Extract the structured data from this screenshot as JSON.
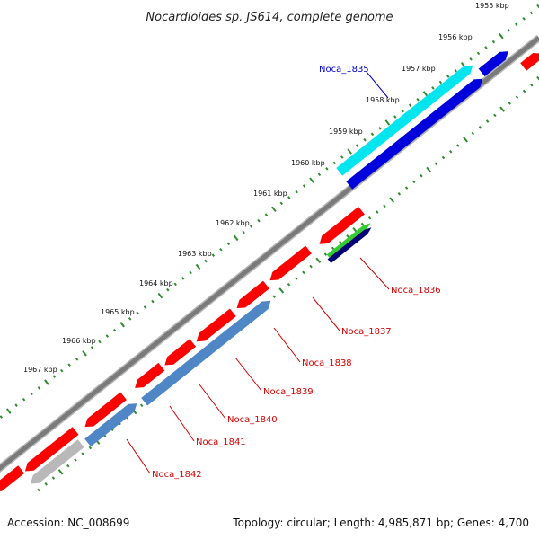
{
  "title": "Nocardioides sp. JS614, complete genome",
  "footer": {
    "accession": "Accession: NC_008699",
    "summary": "Topology: circular; Length: 4,985,871 bp; Genes: 4,700"
  },
  "colors": {
    "backbone": "#7a7a7a",
    "tick": "#2e8b2e",
    "forward_gene": "#ff0000",
    "reverse_gene": "#0000dd",
    "highlight_gene": "#00e5ee",
    "steel_gene": "#4f86c6",
    "green_gene": "#33cc33",
    "navy_gene": "#000077",
    "grey_gene": "#b8b8b8",
    "label_red": "#d40000",
    "label_blue": "#0000cc"
  },
  "scale_labels": [
    "1955 kbp",
    "1956 kbp",
    "1957 kbp",
    "1958 kbp",
    "1959 kbp",
    "1960 kbp",
    "1961 kbp",
    "1962 kbp",
    "1963 kbp",
    "1964 kbp",
    "1965 kbp",
    "1966 kbp",
    "1967 kbp"
  ],
  "gene_labels": [
    {
      "text": "Noca_1835",
      "color": "label_blue"
    },
    {
      "text": "Noca_1836",
      "color": "label_red"
    },
    {
      "text": "Noca_1837",
      "color": "label_red"
    },
    {
      "text": "Noca_1838",
      "color": "label_red"
    },
    {
      "text": "Noca_1839",
      "color": "label_red"
    },
    {
      "text": "Noca_1840",
      "color": "label_red"
    },
    {
      "text": "Noca_1841",
      "color": "label_red"
    },
    {
      "text": "Noca_1842",
      "color": "label_red"
    }
  ]
}
